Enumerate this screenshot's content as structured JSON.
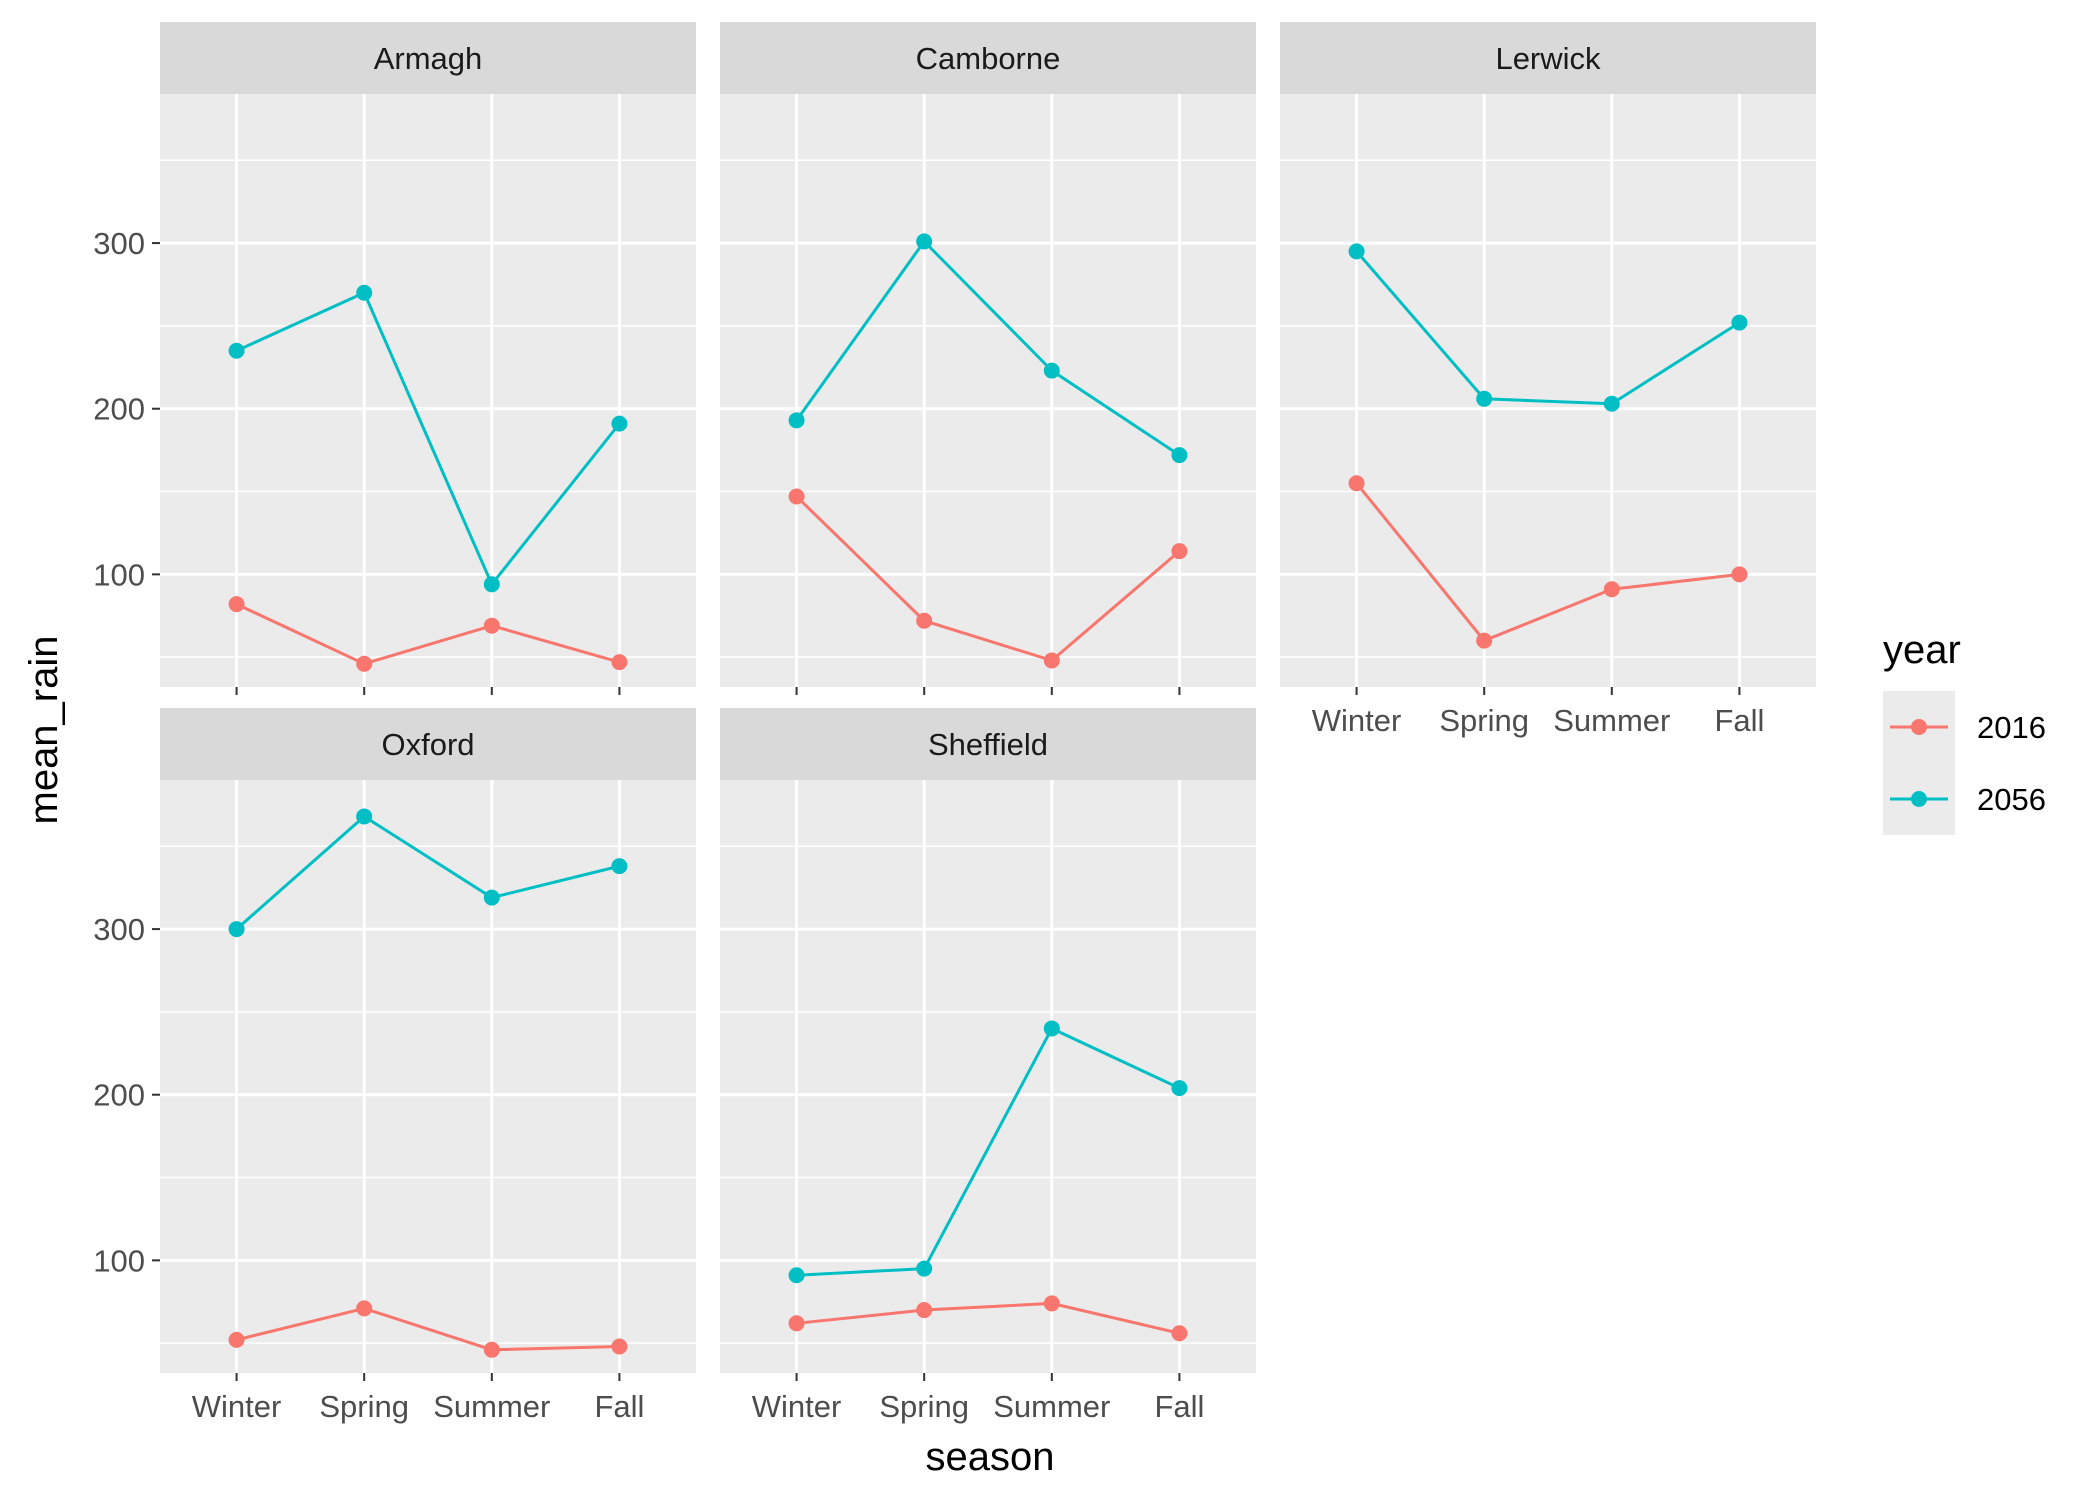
{
  "chart_data": {
    "type": "line",
    "xlabel": "season",
    "ylabel": "mean_rain",
    "categories": [
      "Winter",
      "Spring",
      "Summer",
      "Fall"
    ],
    "ylim": [
      32,
      390
    ],
    "y_ticks": [
      100,
      200,
      300
    ],
    "grid": true,
    "legend": {
      "title": "year",
      "position": "right",
      "entries": [
        {
          "name": "2016",
          "color": "#F8766D"
        },
        {
          "name": "2056",
          "color": "#00BFC4"
        }
      ]
    },
    "panels": [
      {
        "title": "Armagh",
        "series": [
          {
            "name": "2016",
            "values": [
              82,
              46,
              69,
              47
            ]
          },
          {
            "name": "2056",
            "values": [
              235,
              270,
              94,
              191
            ]
          }
        ]
      },
      {
        "title": "Camborne",
        "series": [
          {
            "name": "2016",
            "values": [
              147,
              72,
              48,
              114
            ]
          },
          {
            "name": "2056",
            "values": [
              193,
              301,
              223,
              172
            ]
          }
        ]
      },
      {
        "title": "Lerwick",
        "series": [
          {
            "name": "2016",
            "values": [
              155,
              60,
              91,
              100
            ]
          },
          {
            "name": "2056",
            "values": [
              295,
              206,
              203,
              252
            ]
          }
        ]
      },
      {
        "title": "Oxford",
        "series": [
          {
            "name": "2016",
            "values": [
              52,
              71,
              46,
              48
            ]
          },
          {
            "name": "2056",
            "values": [
              300,
              368,
              319,
              338
            ]
          }
        ]
      },
      {
        "title": "Sheffield",
        "series": [
          {
            "name": "2016",
            "values": [
              62,
              70,
              74,
              56
            ]
          },
          {
            "name": "2056",
            "values": [
              91,
              95,
              240,
              204
            ]
          }
        ]
      }
    ]
  }
}
